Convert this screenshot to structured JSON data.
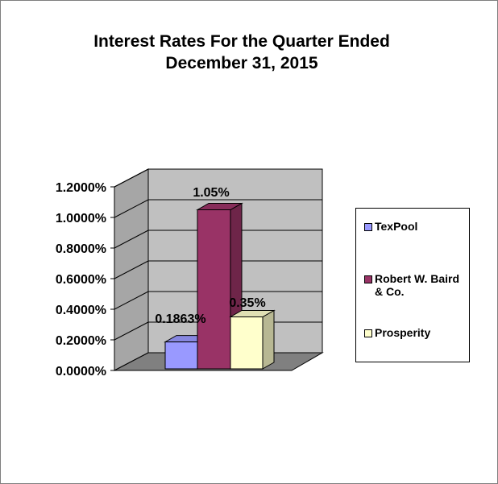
{
  "chart_data": {
    "type": "bar",
    "title": "Interest Rates For the Quarter Ended December 31, 2015",
    "categories": [
      "TexPool",
      "Robert W. Baird & Co.",
      "Prosperity"
    ],
    "series": [
      {
        "name": "TexPool",
        "value": 0.1863,
        "label": "0.1863%",
        "color": "#9999ff"
      },
      {
        "name": "Robert W. Baird & Co.",
        "value": 1.05,
        "label": "1.05%",
        "color": "#993366"
      },
      {
        "name": "Prosperity",
        "value": 0.35,
        "label": "0.35%",
        "color": "#ffffcc"
      }
    ],
    "yticks": [
      "0.0000%",
      "0.2000%",
      "0.4000%",
      "0.6000%",
      "0.8000%",
      "1.0000%",
      "1.2000%"
    ],
    "ylim": [
      0,
      1.2
    ],
    "grid": true,
    "style": "3d-column",
    "legend_position": "right"
  }
}
